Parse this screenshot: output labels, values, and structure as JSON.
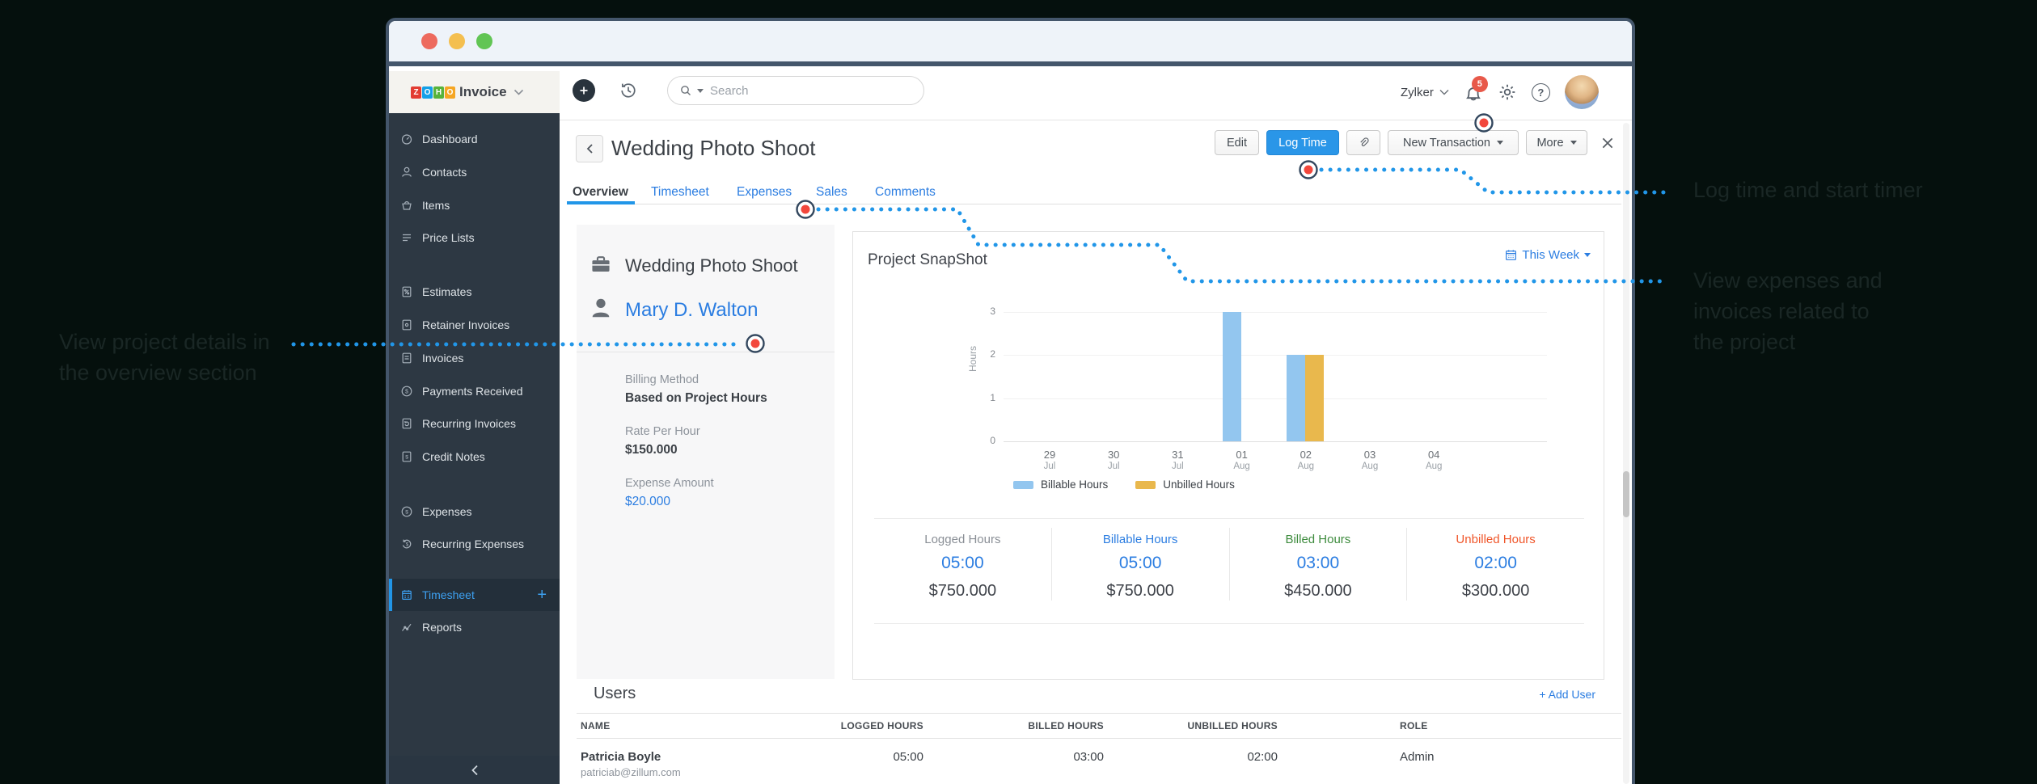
{
  "colors": {
    "canvas_bg": "#05100d",
    "accent_blue": "#2196e8",
    "link_blue": "#2b7de1",
    "badge_red": "#e8594a"
  },
  "window": {
    "traffic_lights": [
      "#ed6a5e",
      "#f4bf4f",
      "#61c554"
    ]
  },
  "logo": {
    "blocks": [
      {
        "letter": "Z",
        "color": "#e23c32"
      },
      {
        "letter": "O",
        "color": "#14a0e8"
      },
      {
        "letter": "H",
        "color": "#57b33b"
      },
      {
        "letter": "O",
        "color": "#f5a623"
      }
    ],
    "product": "Invoice"
  },
  "sidebar": {
    "items": [
      {
        "label": "Dashboard"
      },
      {
        "label": "Contacts"
      },
      {
        "label": "Items"
      },
      {
        "label": "Price Lists"
      },
      {
        "label": "Estimates"
      },
      {
        "label": "Retainer Invoices"
      },
      {
        "label": "Invoices"
      },
      {
        "label": "Payments Received"
      },
      {
        "label": "Recurring Invoices"
      },
      {
        "label": "Credit Notes"
      },
      {
        "label": "Expenses"
      },
      {
        "label": "Recurring Expenses"
      },
      {
        "label": "Timesheet",
        "trailing": "+"
      },
      {
        "label": "Reports"
      }
    ]
  },
  "topbar": {
    "search_placeholder": "Search",
    "org": "Zylker",
    "notification_count": "5"
  },
  "page": {
    "title": "Wedding Photo Shoot",
    "edit": "Edit",
    "log_time": "Log Time",
    "new_transaction": "New Transaction",
    "more": "More"
  },
  "tabs": [
    {
      "label": "Overview"
    },
    {
      "label": "Timesheet"
    },
    {
      "label": "Expenses"
    },
    {
      "label": "Sales"
    },
    {
      "label": "Comments"
    }
  ],
  "project": {
    "name": "Wedding Photo Shoot",
    "customer": "Mary D. Walton",
    "fields": [
      {
        "label": "Billing Method",
        "value": "Based on Project Hours"
      },
      {
        "label": "Rate Per Hour",
        "value": "$150.000"
      },
      {
        "label": "Expense Amount",
        "value": "$20.000"
      }
    ]
  },
  "snapshot": {
    "title": "Project SnapShot",
    "range": "This Week"
  },
  "chart_data": {
    "type": "bar",
    "title": "Project SnapShot",
    "ylabel": "Hours",
    "ylim": [
      0,
      3
    ],
    "yticks": [
      0,
      1,
      2,
      3
    ],
    "grid": true,
    "legend_position": "bottom",
    "categories": [
      "29 Jul",
      "30 Jul",
      "31 Jul",
      "01 Aug",
      "02 Aug",
      "03 Aug",
      "04 Aug"
    ],
    "series": [
      {
        "name": "Billable Hours",
        "color": "#93c6ef",
        "values": [
          0,
          0,
          0,
          3,
          2,
          0,
          0
        ]
      },
      {
        "name": "Unbilled Hours",
        "color": "#e9b84d",
        "values": [
          0,
          0,
          0,
          0,
          2,
          0,
          0
        ]
      }
    ]
  },
  "stats": [
    {
      "label": "Logged Hours",
      "label_color": "#8a8f96",
      "hours": "05:00",
      "amount": "$750.000"
    },
    {
      "label": "Billable Hours",
      "label_color": "#2b7de1",
      "hours": "05:00",
      "amount": "$750.000"
    },
    {
      "label": "Billed Hours",
      "label_color": "#3d8b3d",
      "hours": "03:00",
      "amount": "$450.000"
    },
    {
      "label": "Unbilled Hours",
      "label_color": "#f0562a",
      "hours": "02:00",
      "amount": "$300.000"
    }
  ],
  "users": {
    "heading": "Users",
    "add_label": "+ Add User",
    "columns": [
      "NAME",
      "LOGGED HOURS",
      "BILLED HOURS",
      "UNBILLED HOURS",
      "ROLE"
    ],
    "rows": [
      {
        "name": "Patricia Boyle",
        "email": "patriciab@zillum.com",
        "logged": "05:00",
        "billed": "03:00",
        "unbilled": "02:00",
        "role": "Admin"
      }
    ]
  },
  "annotations": {
    "left": "View project details in the overview section",
    "log_time": "Log time and start timer",
    "expenses": "View expenses and invoices related to the project"
  }
}
